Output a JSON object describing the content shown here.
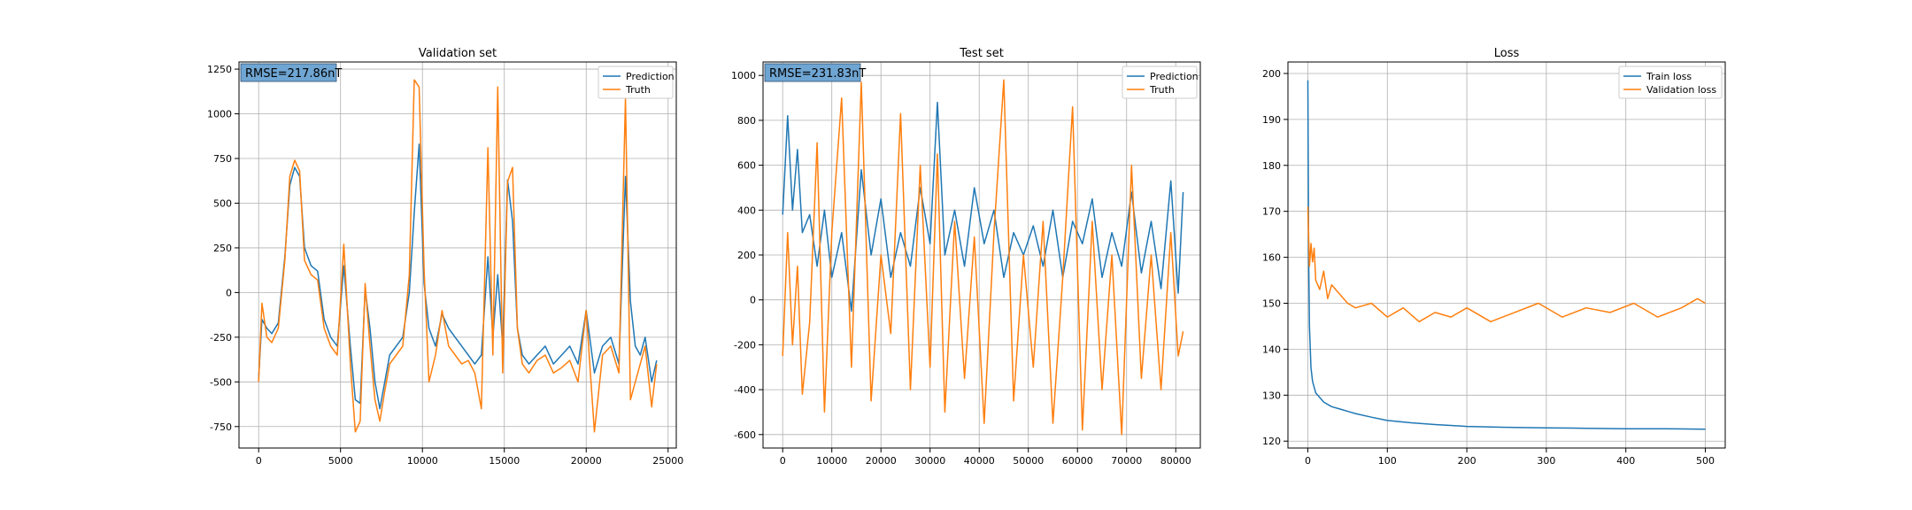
{
  "colors": {
    "prediction": "#1f77b4",
    "truth": "#ff7f0e",
    "grid": "#b0b0b0",
    "rmse_box": "#6fa5d2"
  },
  "chart_data": [
    {
      "type": "line",
      "title": "Validation set",
      "annotation": "RMSE=217.86nT",
      "xlabel": "",
      "ylabel": "",
      "xlim": [
        -1200,
        25500
      ],
      "ylim": [
        -870,
        1290
      ],
      "xticks": [
        0,
        5000,
        10000,
        15000,
        20000,
        25000
      ],
      "yticks": [
        -750,
        -500,
        -250,
        0,
        250,
        500,
        750,
        1000,
        1250
      ],
      "grid": true,
      "legend_position": "top-right",
      "series": [
        {
          "name": "Prediction",
          "x": [
            0,
            200,
            500,
            800,
            1200,
            1600,
            1900,
            2200,
            2500,
            2800,
            3200,
            3600,
            4000,
            4400,
            4800,
            5200,
            5600,
            5900,
            6200,
            6500,
            6800,
            7100,
            7400,
            7700,
            8000,
            8400,
            8800,
            9200,
            9500,
            9800,
            10100,
            10400,
            10800,
            11200,
            11600,
            12000,
            12400,
            12800,
            13200,
            13600,
            14000,
            14300,
            14600,
            14900,
            15200,
            15500,
            15800,
            16100,
            16500,
            17000,
            17500,
            18000,
            18500,
            19000,
            19500,
            20000,
            20500,
            21000,
            21500,
            22000,
            22400,
            22700,
            23000,
            23300,
            23600,
            24000,
            24300
          ],
          "values": [
            -480,
            -150,
            -200,
            -230,
            -170,
            200,
            600,
            700,
            650,
            250,
            150,
            120,
            -150,
            -250,
            -300,
            150,
            -300,
            -600,
            -620,
            20,
            -200,
            -500,
            -650,
            -500,
            -350,
            -300,
            -250,
            0,
            450,
            830,
            50,
            -200,
            -300,
            -120,
            -200,
            -250,
            -300,
            -350,
            -400,
            -350,
            200,
            -250,
            100,
            -300,
            630,
            400,
            -200,
            -350,
            -400,
            -350,
            -300,
            -400,
            -350,
            -300,
            -400,
            -100,
            -450,
            -300,
            -250,
            -400,
            650,
            -50,
            -300,
            -350,
            -250,
            -500,
            -380
          ]
        },
        {
          "name": "Truth",
          "x": [
            0,
            200,
            500,
            800,
            1200,
            1600,
            1900,
            2200,
            2500,
            2800,
            3200,
            3600,
            4000,
            4400,
            4800,
            5200,
            5600,
            5900,
            6200,
            6500,
            6800,
            7100,
            7400,
            7700,
            8000,
            8400,
            8800,
            9200,
            9500,
            9800,
            10100,
            10400,
            10800,
            11200,
            11600,
            12000,
            12400,
            12800,
            13200,
            13600,
            14000,
            14300,
            14600,
            14900,
            15200,
            15500,
            15800,
            16100,
            16500,
            17000,
            17500,
            18000,
            18500,
            19000,
            19500,
            20000,
            20500,
            21000,
            21500,
            22000,
            22400,
            22700,
            23000,
            23300,
            23600,
            24000,
            24300
          ],
          "values": [
            -500,
            -60,
            -250,
            -280,
            -200,
            180,
            650,
            740,
            680,
            180,
            100,
            70,
            -200,
            -300,
            -350,
            270,
            -400,
            -780,
            -720,
            50,
            -300,
            -600,
            -720,
            -550,
            -400,
            -350,
            -300,
            100,
            1190,
            1150,
            130,
            -500,
            -350,
            -100,
            -300,
            -350,
            -400,
            -380,
            -450,
            -650,
            810,
            -350,
            1150,
            -450,
            620,
            700,
            -200,
            -400,
            -450,
            -380,
            -350,
            -450,
            -420,
            -380,
            -500,
            -100,
            -780,
            -350,
            -300,
            -450,
            1090,
            -600,
            -500,
            -400,
            -300,
            -640,
            -400
          ]
        }
      ]
    },
    {
      "type": "line",
      "title": "Test set",
      "annotation": "RMSE=231.83nT",
      "xlabel": "",
      "ylabel": "",
      "xlim": [
        -4000,
        85000
      ],
      "ylim": [
        -660,
        1060
      ],
      "xticks": [
        0,
        10000,
        20000,
        30000,
        40000,
        50000,
        60000,
        70000,
        80000
      ],
      "yticks": [
        -600,
        -400,
        -200,
        0,
        200,
        400,
        600,
        800,
        1000
      ],
      "grid": true,
      "legend_position": "top-right",
      "series": [
        {
          "name": "Prediction",
          "x": [
            0,
            1000,
            2000,
            3000,
            4000,
            5500,
            7000,
            8500,
            10000,
            12000,
            14000,
            16000,
            18000,
            20000,
            22000,
            24000,
            26000,
            28000,
            30000,
            31500,
            33000,
            35000,
            37000,
            39000,
            41000,
            43000,
            45000,
            47000,
            49000,
            51000,
            53000,
            55000,
            57000,
            59000,
            61000,
            63000,
            65000,
            67000,
            69000,
            71000,
            73000,
            75000,
            77000,
            79000,
            80500,
            81500
          ],
          "values": [
            380,
            820,
            400,
            670,
            300,
            380,
            150,
            400,
            100,
            300,
            -50,
            580,
            200,
            450,
            100,
            300,
            150,
            500,
            250,
            880,
            200,
            400,
            150,
            500,
            250,
            400,
            100,
            300,
            200,
            330,
            150,
            400,
            100,
            350,
            250,
            450,
            100,
            300,
            150,
            480,
            120,
            350,
            50,
            530,
            30,
            480
          ]
        },
        {
          "name": "Truth",
          "x": [
            0,
            1000,
            2000,
            3000,
            4000,
            5500,
            7000,
            8500,
            10000,
            12000,
            14000,
            16000,
            18000,
            20000,
            22000,
            24000,
            26000,
            28000,
            30000,
            31500,
            33000,
            35000,
            37000,
            39000,
            41000,
            43000,
            45000,
            47000,
            49000,
            51000,
            53000,
            55000,
            57000,
            59000,
            61000,
            63000,
            65000,
            67000,
            69000,
            71000,
            73000,
            75000,
            77000,
            79000,
            80500,
            81500
          ],
          "values": [
            -250,
            300,
            -200,
            150,
            -420,
            -100,
            700,
            -500,
            300,
            900,
            -300,
            970,
            -450,
            200,
            -150,
            830,
            -400,
            600,
            -300,
            650,
            -500,
            350,
            -350,
            280,
            -550,
            300,
            980,
            -450,
            200,
            -300,
            350,
            -550,
            100,
            860,
            -580,
            350,
            -400,
            200,
            -600,
            600,
            -350,
            200,
            -400,
            300,
            -250,
            -140
          ]
        }
      ]
    },
    {
      "type": "line",
      "title": "Loss",
      "xlabel": "",
      "ylabel": "",
      "xlim": [
        -25,
        525
      ],
      "ylim": [
        118.5,
        202.5
      ],
      "xticks": [
        0,
        100,
        200,
        300,
        400,
        500
      ],
      "yticks": [
        120,
        130,
        140,
        150,
        160,
        170,
        180,
        190,
        200
      ],
      "grid": true,
      "legend_position": "top-right",
      "series": [
        {
          "name": "Train loss",
          "x": [
            0,
            1,
            2,
            4,
            6,
            10,
            15,
            20,
            30,
            40,
            60,
            80,
            100,
            130,
            160,
            200,
            250,
            300,
            350,
            400,
            450,
            500
          ],
          "values": [
            198.5,
            160,
            145,
            136,
            133,
            130.5,
            129.5,
            128.5,
            127.5,
            127,
            126,
            125.2,
            124.5,
            124,
            123.6,
            123.2,
            123,
            122.9,
            122.8,
            122.7,
            122.7,
            122.6
          ]
        },
        {
          "name": "Validation loss",
          "x": [
            0,
            2,
            4,
            6,
            8,
            10,
            15,
            20,
            25,
            30,
            40,
            50,
            60,
            80,
            100,
            120,
            140,
            160,
            180,
            200,
            230,
            260,
            290,
            320,
            350,
            380,
            410,
            440,
            470,
            490,
            500
          ],
          "values": [
            171,
            158,
            163,
            159,
            162,
            155,
            153,
            157,
            151,
            154,
            152,
            150,
            149,
            150,
            147,
            149,
            146,
            148,
            147,
            149,
            146,
            148,
            150,
            147,
            149,
            148,
            150,
            147,
            149,
            151,
            150
          ]
        }
      ]
    }
  ]
}
